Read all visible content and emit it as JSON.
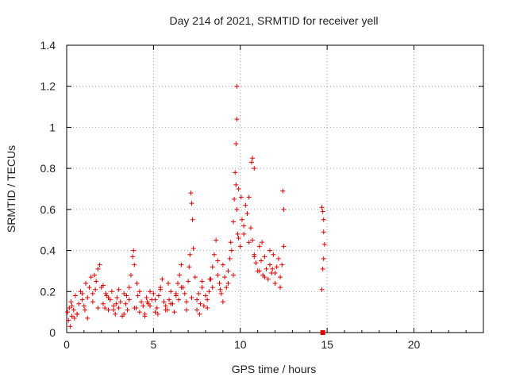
{
  "chart_data": {
    "type": "scatter",
    "title": "Day 214 of 2021, SRMTID for receiver yell",
    "xlabel": "GPS time / hours",
    "ylabel": "SRMTID / TECUs",
    "xlim": [
      0,
      24
    ],
    "ylim": [
      0,
      1.4
    ],
    "x_ticks": [
      0,
      5,
      10,
      15,
      20
    ],
    "x_tick_labels": [
      "0",
      "5",
      "10",
      "15",
      "20"
    ],
    "y_ticks": [
      0,
      0.2,
      0.4,
      0.6,
      0.8,
      1.0,
      1.2,
      1.4
    ],
    "y_tick_labels": [
      "0",
      "0.2",
      "0.4",
      "0.6",
      "0.8",
      "1",
      "1.2",
      "1.4"
    ],
    "grid": true,
    "marker": "+",
    "color": "#dd0000",
    "series": [
      {
        "name": "SRMTID",
        "x": [
          0.05,
          0.1,
          0.15,
          0.2,
          0.25,
          0.3,
          0.4,
          0.5,
          0.6,
          0.7,
          0.8,
          0.9,
          1.0,
          1.1,
          1.2,
          1.3,
          1.4,
          1.5,
          1.6,
          1.7,
          1.8,
          1.9,
          2.0,
          2.1,
          2.2,
          2.3,
          2.4,
          2.5,
          2.6,
          2.7,
          2.8,
          2.9,
          3.0,
          3.1,
          3.2,
          3.3,
          3.4,
          3.5,
          3.6,
          3.7,
          3.8,
          3.85,
          3.9,
          4.0,
          4.1,
          4.2,
          4.3,
          4.4,
          4.5,
          4.6,
          4.7,
          4.8,
          4.9,
          5.0,
          5.1,
          5.2,
          5.3,
          5.4,
          5.5,
          5.6,
          5.7,
          5.8,
          5.9,
          6.0,
          6.1,
          6.2,
          6.3,
          6.4,
          6.5,
          6.6,
          6.7,
          6.8,
          6.9,
          7.0,
          7.1,
          7.15,
          7.2,
          7.25,
          7.3,
          7.4,
          7.5,
          7.6,
          7.7,
          7.8,
          7.9,
          8.0,
          8.1,
          8.2,
          8.3,
          8.4,
          8.5,
          8.6,
          8.7,
          8.8,
          8.9,
          9.0,
          9.1,
          9.2,
          9.3,
          9.4,
          9.5,
          9.6,
          9.65,
          9.7,
          9.75,
          9.8,
          9.85,
          9.9,
          10.0,
          10.1,
          10.2,
          10.3,
          10.4,
          10.5,
          10.6,
          10.7,
          10.8,
          10.9,
          11.0,
          11.1,
          11.2,
          11.3,
          11.4,
          11.5,
          11.6,
          11.7,
          11.8,
          11.9,
          12.0,
          12.1,
          12.2,
          12.3,
          12.4,
          12.5,
          0.3,
          0.6,
          0.9,
          1.2,
          1.5,
          1.8,
          2.1,
          2.4,
          2.7,
          3.0,
          3.3,
          3.6,
          3.9,
          4.2,
          4.5,
          4.8,
          5.1,
          5.4,
          5.7,
          6.0,
          6.3,
          6.6,
          6.9,
          7.2,
          7.5,
          7.8,
          8.1,
          8.4,
          8.7,
          9.0,
          9.3,
          9.6,
          9.9,
          10.2,
          10.5,
          10.8,
          11.1,
          11.4,
          11.7,
          12.0,
          12.3,
          0.45,
          1.05,
          1.65,
          2.25,
          2.85,
          3.45,
          4.05,
          4.65,
          5.25,
          5.85,
          6.45,
          7.05,
          7.65,
          8.25,
          8.85,
          9.45,
          10.05,
          10.65,
          11.25,
          11.85,
          12.45,
          9.75,
          9.8,
          9.8,
          10.7,
          10.8,
          12.5,
          14.7,
          14.75,
          14.8,
          14.85,
          14.8,
          14.75,
          14.7,
          14.8
        ],
        "y": [
          0.1,
          0.06,
          0.12,
          0.03,
          0.15,
          0.08,
          0.11,
          0.18,
          0.09,
          0.14,
          0.2,
          0.16,
          0.13,
          0.24,
          0.17,
          0.22,
          0.27,
          0.19,
          0.28,
          0.25,
          0.31,
          0.33,
          0.22,
          0.14,
          0.12,
          0.18,
          0.11,
          0.16,
          0.2,
          0.13,
          0.09,
          0.17,
          0.12,
          0.15,
          0.08,
          0.19,
          0.14,
          0.11,
          0.22,
          0.28,
          0.37,
          0.4,
          0.33,
          0.12,
          0.18,
          0.1,
          0.15,
          0.13,
          0.08,
          0.17,
          0.14,
          0.2,
          0.16,
          0.19,
          0.1,
          0.12,
          0.18,
          0.22,
          0.26,
          0.15,
          0.13,
          0.11,
          0.16,
          0.2,
          0.14,
          0.1,
          0.18,
          0.24,
          0.28,
          0.33,
          0.22,
          0.19,
          0.11,
          0.25,
          0.38,
          0.68,
          0.63,
          0.55,
          0.41,
          0.27,
          0.16,
          0.19,
          0.14,
          0.22,
          0.13,
          0.18,
          0.12,
          0.2,
          0.26,
          0.32,
          0.38,
          0.45,
          0.28,
          0.24,
          0.19,
          0.33,
          0.27,
          0.22,
          0.3,
          0.36,
          0.4,
          0.54,
          0.65,
          0.78,
          0.72,
          0.6,
          0.48,
          0.7,
          0.42,
          0.55,
          0.48,
          0.62,
          0.58,
          0.66,
          0.51,
          0.45,
          0.38,
          0.34,
          0.3,
          0.42,
          0.35,
          0.28,
          0.37,
          0.31,
          0.26,
          0.33,
          0.29,
          0.38,
          0.24,
          0.32,
          0.36,
          0.27,
          0.33,
          0.42,
          0.13,
          0.09,
          0.19,
          0.07,
          0.15,
          0.12,
          0.23,
          0.17,
          0.11,
          0.21,
          0.09,
          0.16,
          0.12,
          0.2,
          0.09,
          0.13,
          0.16,
          0.21,
          0.11,
          0.14,
          0.19,
          0.22,
          0.15,
          0.17,
          0.11,
          0.25,
          0.16,
          0.22,
          0.35,
          0.15,
          0.24,
          0.28,
          0.46,
          0.52,
          0.44,
          0.37,
          0.3,
          0.27,
          0.4,
          0.29,
          0.22,
          0.07,
          0.11,
          0.21,
          0.19,
          0.14,
          0.18,
          0.24,
          0.15,
          0.09,
          0.24,
          0.16,
          0.32,
          0.09,
          0.26,
          0.21,
          0.44,
          0.66,
          0.83,
          0.44,
          0.31,
          0.69,
          0.92,
          1.04,
          1.2,
          0.85,
          0.8,
          0.6,
          0.61,
          0.59,
          0.49,
          0.43,
          0.36,
          0.31,
          0.21,
          0.55
        ]
      },
      {
        "name": "zero-marker",
        "x": [
          14.75
        ],
        "y": [
          0.0
        ]
      }
    ]
  }
}
